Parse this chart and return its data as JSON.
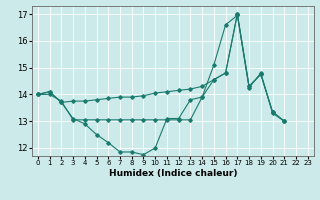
{
  "xlabel": "Humidex (Indice chaleur)",
  "xlim": [
    -0.5,
    23.5
  ],
  "ylim": [
    11.7,
    17.3
  ],
  "yticks": [
    12,
    13,
    14,
    15,
    16,
    17
  ],
  "xticks": [
    0,
    1,
    2,
    3,
    4,
    5,
    6,
    7,
    8,
    9,
    10,
    11,
    12,
    13,
    14,
    15,
    16,
    17,
    18,
    19,
    20,
    21,
    22,
    23
  ],
  "bg_color": "#cdeaea",
  "grid_color": "#ffffff",
  "line_color": "#1a7a6e",
  "line1_y": [
    14.0,
    14.1,
    13.7,
    13.1,
    12.9,
    12.5,
    12.2,
    11.85,
    11.85,
    11.75,
    12.0,
    13.1,
    13.1,
    13.8,
    13.9,
    15.1,
    16.6,
    16.95,
    14.25,
    14.8,
    13.3,
    13.0
  ],
  "line2_y": [
    14.0,
    14.1,
    13.7,
    13.75,
    13.75,
    13.8,
    13.85,
    13.9,
    13.9,
    13.95,
    14.05,
    14.1,
    14.15,
    14.2,
    14.3,
    14.55,
    14.8,
    17.0,
    14.3,
    14.75,
    13.35,
    13.0
  ],
  "line3_y": [
    14.0,
    14.0,
    13.75,
    13.05,
    13.05,
    13.05,
    13.05,
    13.05,
    13.05,
    13.05,
    13.05,
    13.05,
    13.05,
    13.05,
    13.9,
    14.55,
    14.8,
    17.0,
    14.3,
    14.75,
    13.35,
    13.0
  ]
}
